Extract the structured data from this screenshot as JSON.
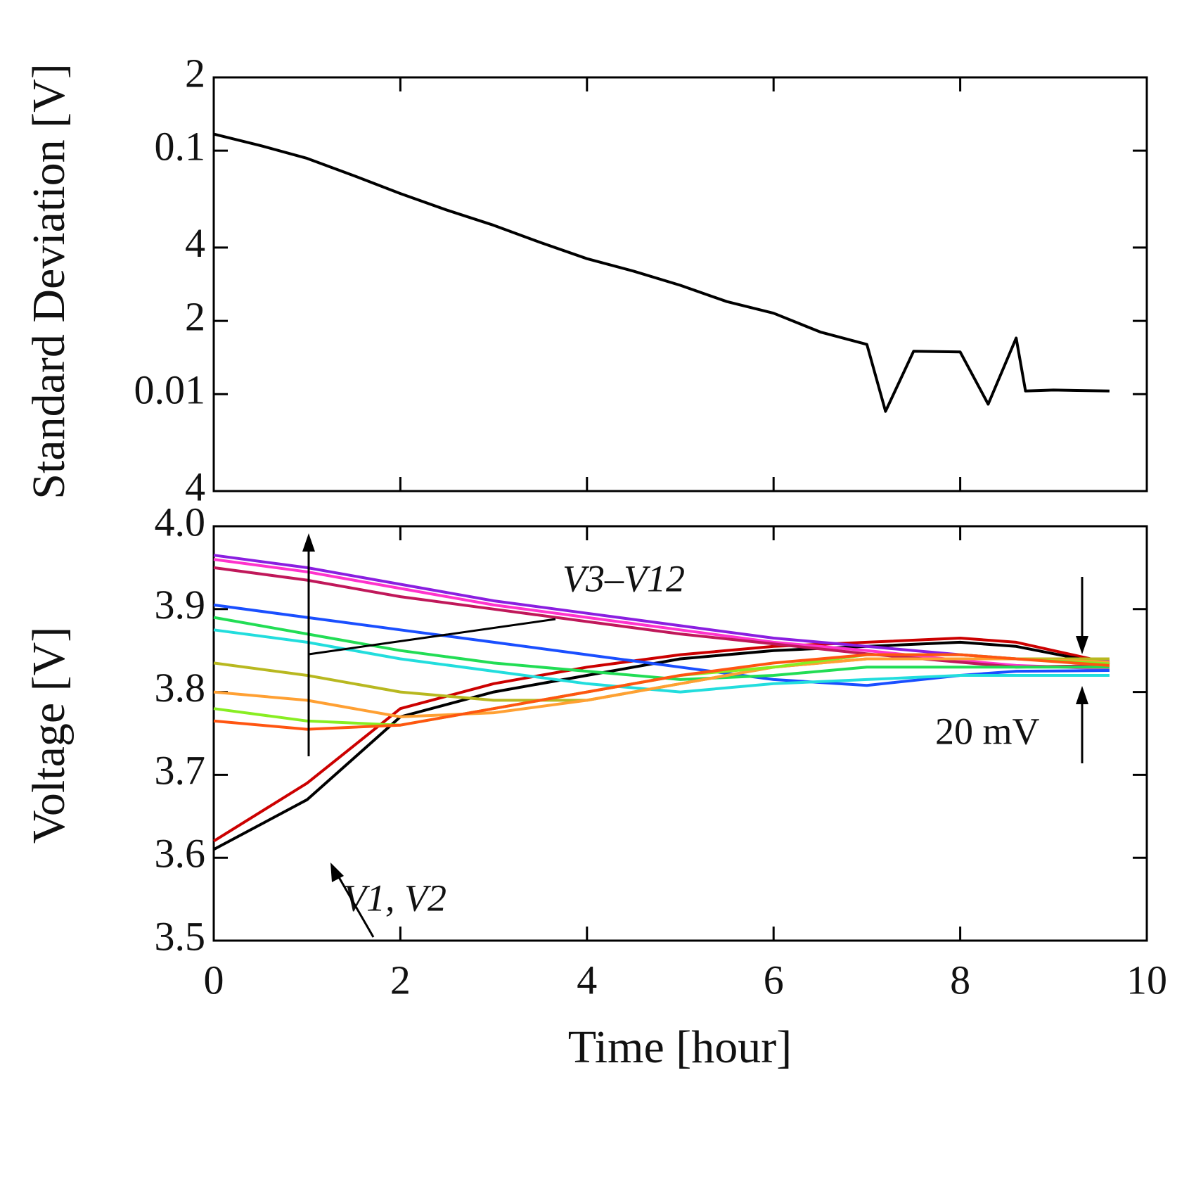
{
  "chart_data": [
    {
      "type": "line",
      "ylabel": "Standard Deviation [V]",
      "log_y": true,
      "xlim": [
        0,
        10
      ],
      "xticks": [
        0,
        2,
        4,
        6,
        8,
        10
      ],
      "ylim": [
        0.004,
        0.2
      ],
      "yticks": [
        {
          "value": 0.2,
          "label": "2"
        },
        0.1,
        {
          "value": 0.04,
          "label": "4"
        },
        {
          "value": 0.02,
          "label": "2"
        },
        0.01,
        {
          "value": 0.004,
          "label": "4"
        }
      ],
      "x": [
        0,
        0.5,
        1,
        1.5,
        2,
        2.5,
        3,
        3.5,
        4,
        4.5,
        5,
        5.5,
        6,
        6.5,
        7,
        7.2,
        7.5,
        8,
        8.3,
        8.6,
        8.7,
        9,
        9.6
      ],
      "series": [
        {
          "color": "#000000",
          "values": [
            0.117,
            0.105,
            0.093,
            0.079,
            0.0667,
            0.057,
            0.0494,
            0.042,
            0.036,
            0.032,
            0.028,
            0.024,
            0.0215,
            0.018,
            0.016,
            0.0085,
            0.015,
            0.0149,
            0.0091,
            0.017,
            0.0103,
            0.0104,
            0.0103
          ]
        }
      ]
    },
    {
      "type": "line",
      "xlabel": "Time [hour]",
      "ylabel": "Voltage [V]",
      "xlim": [
        0,
        10
      ],
      "xticks": [
        0,
        2,
        4,
        6,
        8,
        10
      ],
      "ylim": [
        3.5,
        4.0
      ],
      "yticks": [
        3.5,
        3.6,
        3.7,
        3.8,
        3.9,
        {
          "value": 4,
          "label": "4.0"
        }
      ],
      "x": [
        0,
        1,
        2,
        3,
        4,
        5,
        6,
        7,
        8,
        8.6,
        9.6
      ],
      "series": [
        {
          "color": "#cc0000",
          "values": [
            3.62,
            3.69,
            3.78,
            3.81,
            3.83,
            3.845,
            3.855,
            3.86,
            3.865,
            3.86,
            3.835
          ]
        },
        {
          "color": "#000000",
          "values": [
            3.61,
            3.67,
            3.77,
            3.8,
            3.82,
            3.84,
            3.85,
            3.855,
            3.86,
            3.855,
            3.833
          ]
        },
        {
          "color": "#8a1ee0",
          "values": [
            3.965,
            3.95,
            3.93,
            3.91,
            3.895,
            3.88,
            3.865,
            3.855,
            3.845,
            3.84,
            3.838
          ]
        },
        {
          "color": "#ff33cc",
          "values": [
            3.96,
            3.945,
            3.925,
            3.905,
            3.89,
            3.875,
            3.86,
            3.85,
            3.838,
            3.832,
            3.828
          ]
        },
        {
          "color": "#c0185a",
          "values": [
            3.95,
            3.935,
            3.915,
            3.9,
            3.885,
            3.87,
            3.858,
            3.846,
            3.836,
            3.83,
            3.832
          ]
        },
        {
          "color": "#1a4fff",
          "values": [
            3.905,
            3.89,
            3.875,
            3.86,
            3.845,
            3.83,
            3.815,
            3.808,
            3.82,
            3.825,
            3.826
          ]
        },
        {
          "color": "#22dd55",
          "values": [
            3.89,
            3.87,
            3.85,
            3.835,
            3.825,
            3.815,
            3.82,
            3.83,
            3.83,
            3.83,
            3.83
          ]
        },
        {
          "color": "#22dddd",
          "values": [
            3.875,
            3.86,
            3.84,
            3.825,
            3.81,
            3.8,
            3.81,
            3.815,
            3.82,
            3.82,
            3.82
          ]
        },
        {
          "color": "#b8b820",
          "values": [
            3.835,
            3.82,
            3.8,
            3.79,
            3.79,
            3.81,
            3.83,
            3.84,
            3.84,
            3.84,
            3.84
          ]
        },
        {
          "color": "#ffa033",
          "values": [
            3.8,
            3.79,
            3.77,
            3.775,
            3.79,
            3.81,
            3.83,
            3.84,
            3.84,
            3.84,
            3.836
          ]
        },
        {
          "color": "#88ee22",
          "values": [
            3.78,
            3.765,
            3.76,
            3.78,
            3.8,
            3.82,
            3.83,
            3.845,
            3.845,
            3.84,
            3.834
          ]
        },
        {
          "color": "#ff5511",
          "values": [
            3.765,
            3.755,
            3.76,
            3.78,
            3.8,
            3.82,
            3.835,
            3.845,
            3.845,
            3.84,
            3.832
          ]
        }
      ],
      "annotations": [
        "V3–V12",
        "V1, V2",
        "20 mV"
      ]
    }
  ]
}
